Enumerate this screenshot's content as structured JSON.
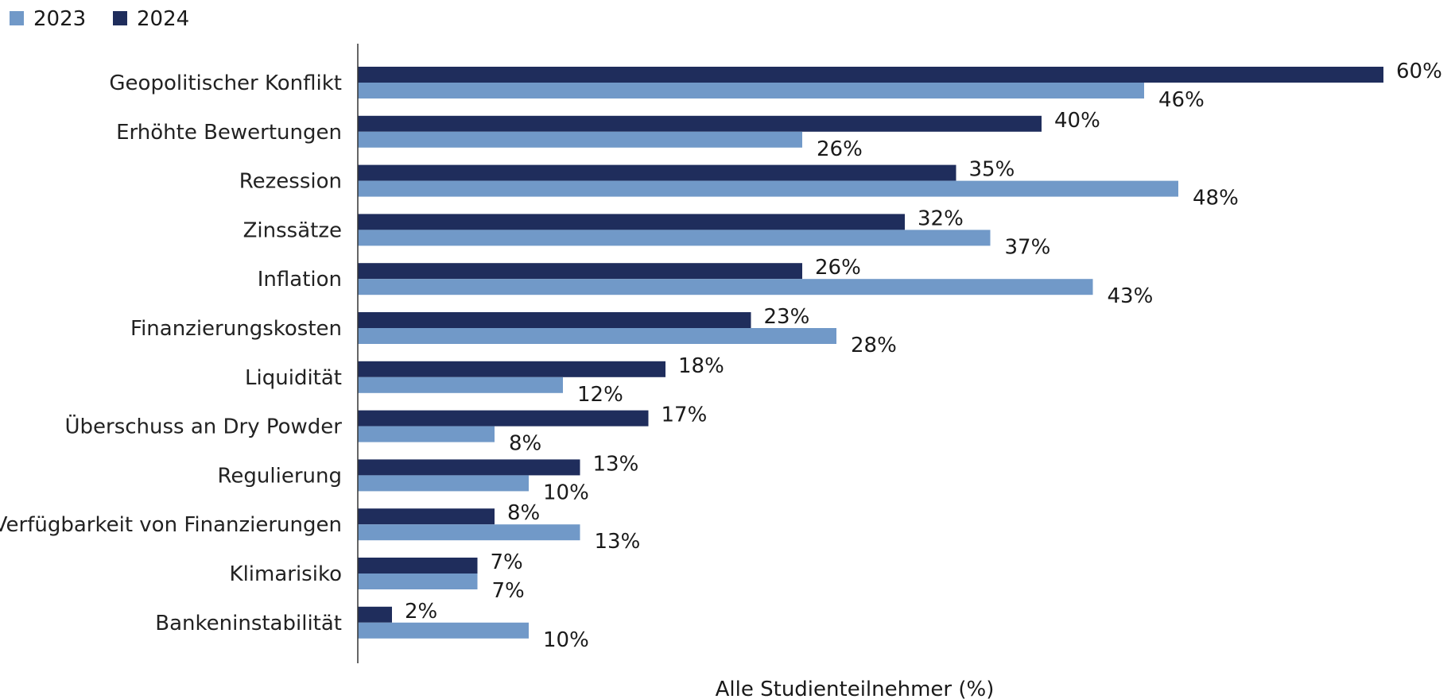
{
  "chart_data": {
    "type": "bar",
    "orientation": "horizontal",
    "categories": [
      "Geopolitischer Konflikt",
      "Erhöhte Bewertungen",
      "Rezession",
      "Zinssätze",
      "Inflation",
      "Finanzierungskosten",
      "Liquidität",
      "Überschuss an Dry Powder",
      "Regulierung",
      "Verfügbarkeit von Finanzierungen",
      "Klimarisiko",
      "Bankeninstabilität"
    ],
    "series": [
      {
        "name": "2024",
        "color": "#1f2d5c",
        "values": [
          60,
          40,
          35,
          32,
          26,
          23,
          18,
          17,
          13,
          8,
          7,
          2
        ]
      },
      {
        "name": "2023",
        "color": "#7199c8",
        "values": [
          46,
          26,
          48,
          37,
          43,
          28,
          12,
          8,
          10,
          13,
          7,
          10
        ]
      }
    ],
    "legend": {
      "placement": "top-left",
      "order": [
        "2023",
        "2024"
      ]
    },
    "value_suffix": "%",
    "xlabel": "Alle Studienteilnehmer (%)",
    "ylabel": "",
    "title": "",
    "xlim": [
      0,
      60
    ],
    "grid": false
  }
}
